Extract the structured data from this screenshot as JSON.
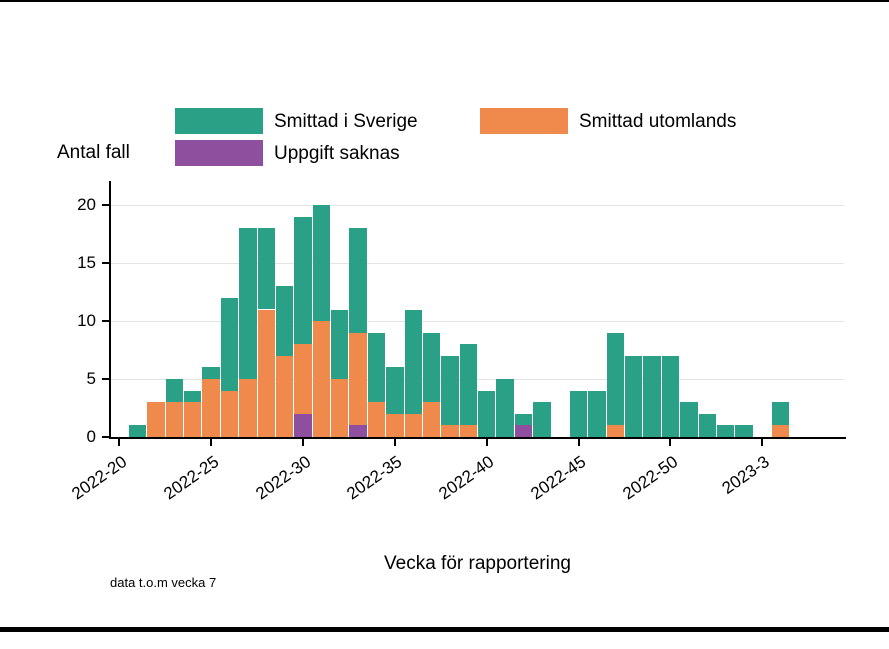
{
  "note": "data t.o.m vecka 7",
  "chart_data": {
    "type": "bar",
    "stacked": true,
    "title": "",
    "xlabel": "Vecka för rapportering",
    "ylabel": "Antal fall",
    "ylim": [
      0,
      22
    ],
    "yticks": [
      0,
      5,
      10,
      15,
      20
    ],
    "grid": "horizontal-light-gray",
    "legend_position": "top",
    "categories": [
      "2022-20",
      "2022-21",
      "2022-22",
      "2022-23",
      "2022-24",
      "2022-25",
      "2022-26",
      "2022-27",
      "2022-28",
      "2022-29",
      "2022-30",
      "2022-31",
      "2022-32",
      "2022-33",
      "2022-34",
      "2022-35",
      "2022-36",
      "2022-37",
      "2022-38",
      "2022-39",
      "2022-40",
      "2022-41",
      "2022-42",
      "2022-43",
      "2022-44",
      "2022-45",
      "2022-46",
      "2022-47",
      "2022-48",
      "2022-49",
      "2022-50",
      "2022-51",
      "2022-52",
      "2023-1",
      "2023-2",
      "2023-3",
      "2023-4",
      "2023-5",
      "2023-6",
      "2023-7"
    ],
    "xticks": [
      {
        "label": "2022-20",
        "week_index": 0
      },
      {
        "label": "2022-25",
        "week_index": 5
      },
      {
        "label": "2022-30",
        "week_index": 10
      },
      {
        "label": "2022-35",
        "week_index": 15
      },
      {
        "label": "2022-40",
        "week_index": 20
      },
      {
        "label": "2022-45",
        "week_index": 25
      },
      {
        "label": "2022-50",
        "week_index": 30
      },
      {
        "label": "2023-3",
        "week_index": 35
      }
    ],
    "series": [
      {
        "name": "Smittad i Sverige",
        "color": "#2aa187",
        "values": [
          0,
          1,
          0,
          2,
          1,
          1,
          8,
          13,
          7,
          6,
          11,
          10,
          6,
          9,
          6,
          4,
          9,
          6,
          6,
          7,
          4,
          5,
          1,
          3,
          0,
          4,
          4,
          8,
          7,
          7,
          7,
          3,
          2,
          1,
          1,
          0,
          2,
          0,
          0,
          0
        ]
      },
      {
        "name": "Smittad utomlands",
        "color": "#f08a4c",
        "values": [
          0,
          0,
          3,
          3,
          3,
          5,
          4,
          5,
          11,
          7,
          6,
          10,
          5,
          8,
          3,
          2,
          2,
          3,
          1,
          1,
          0,
          0,
          0,
          0,
          0,
          0,
          0,
          1,
          0,
          0,
          0,
          0,
          0,
          0,
          0,
          0,
          1,
          0,
          0,
          0
        ]
      },
      {
        "name": "Uppgift saknas",
        "color": "#8f4f9f",
        "values": [
          0,
          0,
          0,
          0,
          0,
          0,
          0,
          0,
          0,
          0,
          2,
          0,
          0,
          1,
          0,
          0,
          0,
          0,
          0,
          0,
          0,
          0,
          1,
          0,
          0,
          0,
          0,
          0,
          0,
          0,
          0,
          0,
          0,
          0,
          0,
          0,
          0,
          0,
          0,
          0
        ]
      }
    ],
    "stack_order": [
      "Uppgift saknas",
      "Smittad utomlands",
      "Smittad i Sverige"
    ]
  }
}
